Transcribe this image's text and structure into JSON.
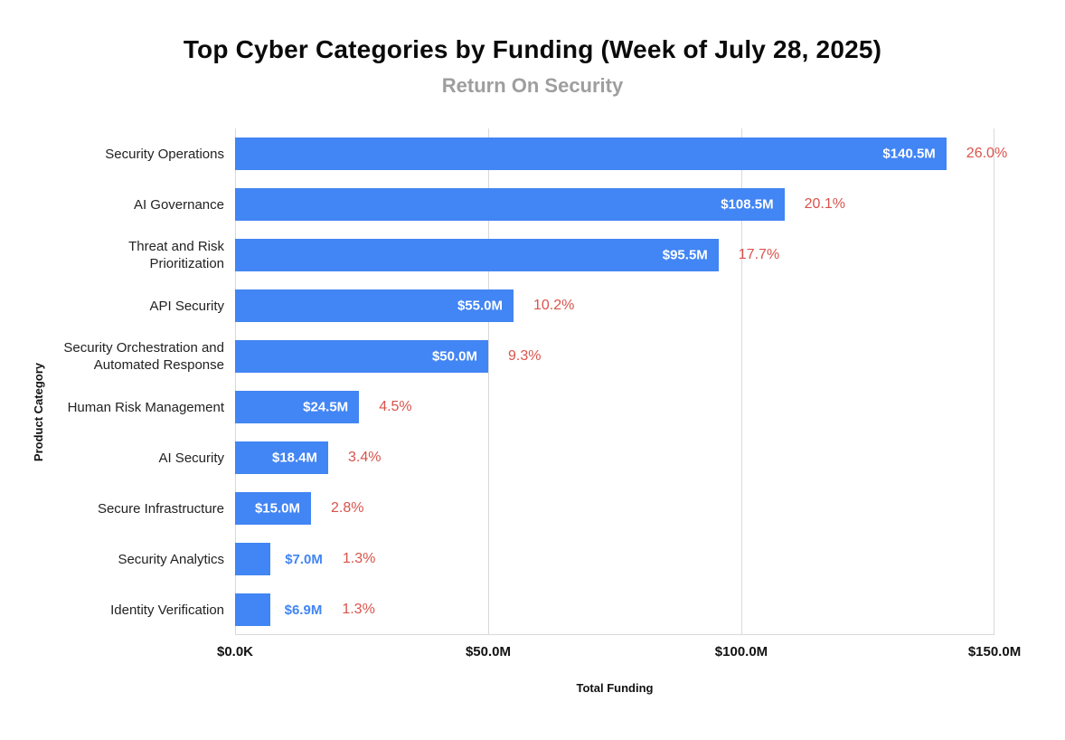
{
  "chart": {
    "title": "Top Cyber Categories by Funding (Week of July 28, 2025)",
    "subtitle": "Return On Security",
    "xlabel": "Total Funding",
    "ylabel": "Product Category"
  },
  "chart_data": {
    "type": "bar",
    "orientation": "horizontal",
    "title": "Top Cyber Categories by Funding (Week of July 28, 2025)",
    "subtitle": "Return On Security",
    "xlabel": "Total Funding",
    "ylabel": "Product Category",
    "xlim": [
      0,
      150
    ],
    "x_ticks": [
      "$0.0K",
      "$50.0M",
      "$100.0M",
      "$150.0M"
    ],
    "x_tick_values": [
      0,
      50,
      100,
      150
    ],
    "grid": true,
    "categories": [
      "Security Operations",
      "AI Governance",
      "Threat and Risk Prioritization",
      "API Security",
      "Security Orchestration and Automated Response",
      "Human Risk Management",
      "AI Security",
      "Secure Infrastructure",
      "Security Analytics",
      "Identity Verification"
    ],
    "values": [
      140.5,
      108.5,
      95.5,
      55.0,
      50.0,
      24.5,
      18.4,
      15.0,
      7.0,
      6.9
    ],
    "value_labels": [
      "$140.5M",
      "$108.5M",
      "$95.5M",
      "$55.0M",
      "$50.0M",
      "$24.5M",
      "$18.4M",
      "$15.0M",
      "$7.0M",
      "$6.9M"
    ],
    "pct_labels": [
      "26.0%",
      "20.1%",
      "17.7%",
      "10.2%",
      "9.3%",
      "4.5%",
      "3.4%",
      "2.8%",
      "1.3%",
      "1.3%"
    ],
    "colors": {
      "bar": "#4285F4",
      "value_inside": "#FFFFFF",
      "value_outside": "#4285F4",
      "pct": "#D9534B",
      "grid": "#D9D9D9",
      "title": "#0A0A0A",
      "subtitle": "#9E9E9E"
    }
  }
}
